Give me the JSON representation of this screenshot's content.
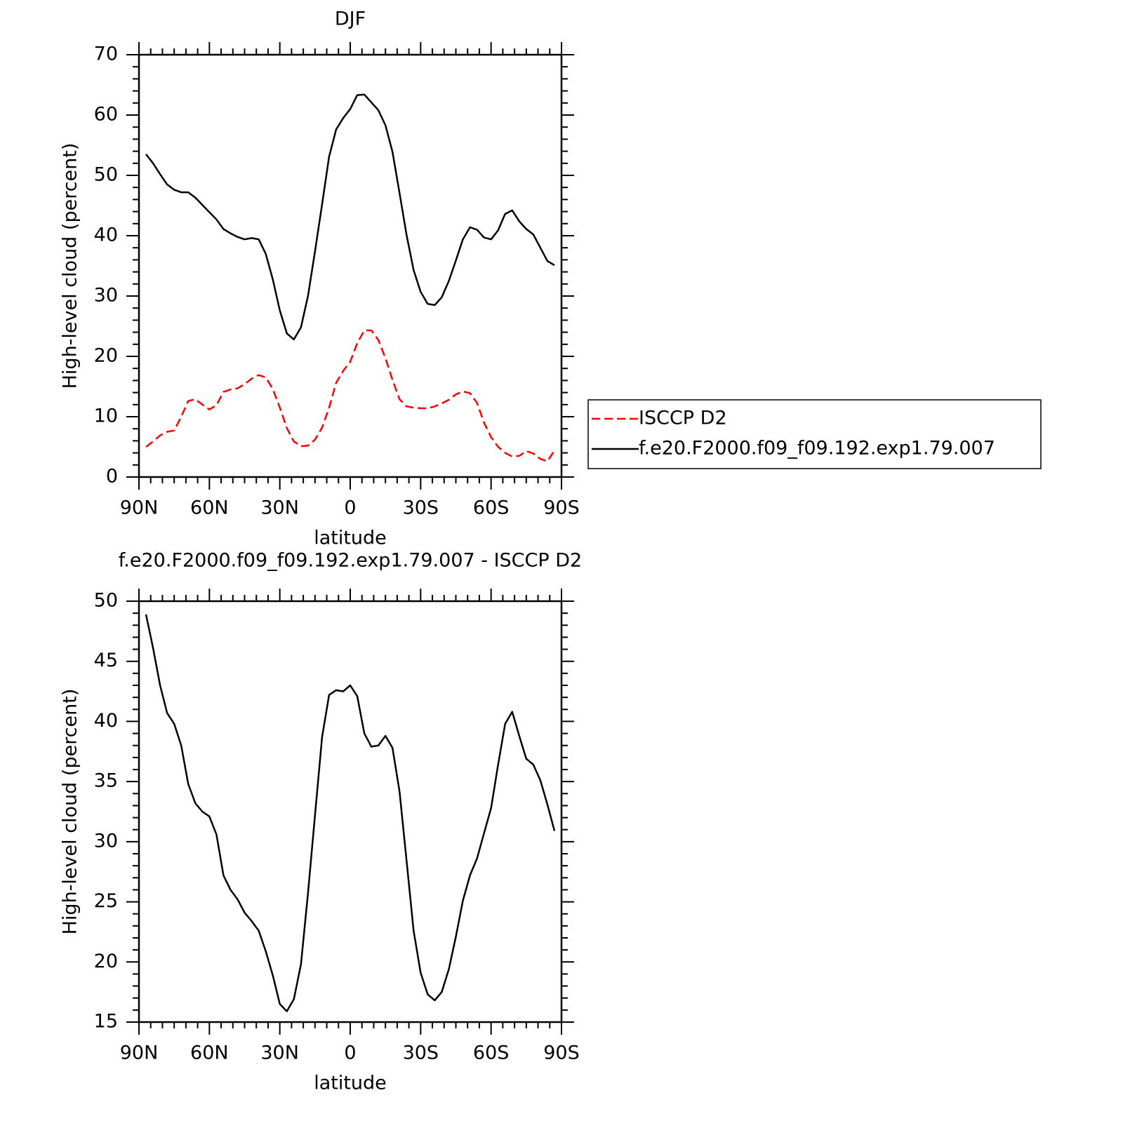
{
  "chart_data": [
    {
      "type": "line",
      "title": "DJF",
      "xlabel": "latitude",
      "ylabel": "High-level cloud (percent)",
      "x": [
        87,
        84,
        81,
        78,
        75,
        72,
        69,
        66,
        63,
        60,
        57,
        54,
        51,
        48,
        45,
        42,
        39,
        36,
        33,
        30,
        27,
        24,
        21,
        18,
        15,
        12,
        9,
        6,
        3,
        0,
        -3,
        -6,
        -9,
        -12,
        -15,
        -18,
        -21,
        -24,
        -27,
        -30,
        -33,
        -36,
        -39,
        -42,
        -45,
        -48,
        -51,
        -54,
        -57,
        -60,
        -63,
        -66,
        -69,
        -72,
        -75,
        -78,
        -81,
        -84,
        -87
      ],
      "xlim": [
        90,
        -90
      ],
      "xticks": [
        {
          "value": 90,
          "label": "90N"
        },
        {
          "value": 60,
          "label": "60N"
        },
        {
          "value": 30,
          "label": "30N"
        },
        0,
        {
          "value": -30,
          "label": "30S"
        },
        {
          "value": -60,
          "label": "60S"
        },
        {
          "value": -90,
          "label": "90S"
        }
      ],
      "ylim": [
        0,
        70
      ],
      "yticks": [
        0,
        10,
        20,
        30,
        40,
        50,
        60,
        70
      ],
      "legend": "right",
      "series": [
        {
          "name": "ISCCP D2",
          "color": "#ff0000",
          "style": "dashed",
          "values": [
            5.0,
            5.9,
            6.9,
            7.5,
            7.7,
            10.0,
            12.6,
            12.9,
            12.0,
            11.2,
            11.9,
            14.1,
            14.5,
            14.7,
            15.4,
            16.3,
            16.9,
            16.5,
            14.6,
            11.5,
            8.1,
            5.9,
            5.1,
            5.2,
            6.2,
            8.2,
            11.5,
            15.6,
            17.6,
            19.1,
            22.2,
            24.3,
            24.3,
            22.7,
            19.7,
            16.1,
            12.9,
            11.7,
            11.5,
            11.4,
            11.4,
            11.7,
            12.2,
            12.8,
            13.7,
            14.2,
            13.9,
            12.3,
            9.0,
            6.6,
            5.0,
            4.0,
            3.4,
            3.5,
            4.3,
            3.9,
            3.0,
            2.6,
            4.4
          ]
        },
        {
          "name": "f.e20.F2000.f09_f09.192.exp1.79.007",
          "color": "#000000",
          "style": "solid",
          "values": [
            53.5,
            52.0,
            50.2,
            48.5,
            47.6,
            47.2,
            47.2,
            46.3,
            45.1,
            43.9,
            42.7,
            41.1,
            40.4,
            39.8,
            39.4,
            39.6,
            39.4,
            37.0,
            32.8,
            27.6,
            23.8,
            22.8,
            24.8,
            30.0,
            37.4,
            45.2,
            53.1,
            57.6,
            59.5,
            61.0,
            63.3,
            63.4,
            62.1,
            60.8,
            58.3,
            53.9,
            47.1,
            40.1,
            34.3,
            30.7,
            28.7,
            28.5,
            29.8,
            32.5,
            35.9,
            39.4,
            41.4,
            41.0,
            39.7,
            39.4,
            40.9,
            43.6,
            44.2,
            42.4,
            41.1,
            40.2,
            38.0,
            35.8,
            35.1
          ]
        }
      ]
    },
    {
      "type": "line",
      "title": "f.e20.F2000.f09_f09.192.exp1.79.007 - ISCCP D2",
      "xlabel": "latitude",
      "ylabel": "High-level cloud (percent)",
      "x": [
        87,
        84,
        81,
        78,
        75,
        72,
        69,
        66,
        63,
        60,
        57,
        54,
        51,
        48,
        45,
        42,
        39,
        36,
        33,
        30,
        27,
        24,
        21,
        18,
        15,
        12,
        9,
        6,
        3,
        0,
        -3,
        -6,
        -9,
        -12,
        -15,
        -18,
        -21,
        -24,
        -27,
        -30,
        -33,
        -36,
        -39,
        -42,
        -45,
        -48,
        -51,
        -54,
        -57,
        -60,
        -63,
        -66,
        -69,
        -72,
        -75,
        -78,
        -81,
        -84,
        -87
      ],
      "xlim": [
        90,
        -90
      ],
      "xticks": [
        {
          "value": 90,
          "label": "90N"
        },
        {
          "value": 60,
          "label": "60N"
        },
        {
          "value": 30,
          "label": "30N"
        },
        0,
        {
          "value": -30,
          "label": "30S"
        },
        {
          "value": -60,
          "label": "60S"
        },
        {
          "value": -90,
          "label": "90S"
        }
      ],
      "ylim": [
        15,
        50
      ],
      "yticks": [
        15,
        20,
        25,
        30,
        35,
        40,
        45,
        50
      ],
      "series": [
        {
          "color": "#000000",
          "style": "solid",
          "values": [
            48.9,
            46.1,
            43.0,
            40.7,
            39.8,
            38.0,
            34.8,
            33.2,
            32.5,
            32.1,
            30.6,
            27.2,
            26.0,
            25.2,
            24.1,
            23.4,
            22.6,
            20.9,
            18.9,
            16.5,
            15.9,
            16.9,
            19.8,
            25.7,
            32.2,
            38.7,
            42.2,
            42.6,
            42.5,
            43.0,
            42.1,
            39.0,
            37.9,
            38.0,
            38.8,
            37.8,
            34.2,
            28.4,
            22.6,
            19.1,
            17.3,
            16.8,
            17.5,
            19.4,
            22.1,
            25.1,
            27.2,
            28.6,
            30.7,
            32.8,
            36.4,
            39.8,
            40.8,
            38.8,
            36.9,
            36.4,
            35.1,
            33.1,
            30.9
          ]
        }
      ]
    }
  ]
}
